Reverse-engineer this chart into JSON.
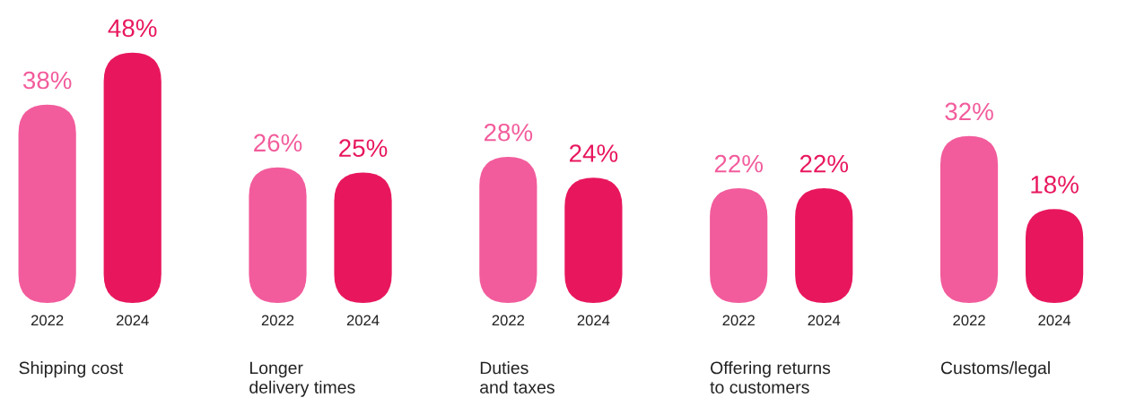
{
  "chart_data": {
    "type": "bar",
    "categories": [
      "Shipping cost",
      "Longer\ndelivery times",
      "Duties\nand taxes",
      "Offering returns\nto customers",
      "Customs/legal"
    ],
    "series": [
      {
        "name": "2022",
        "color": "#f25c9c",
        "values": [
          38,
          26,
          28,
          22,
          32
        ],
        "value_labels": [
          "38%",
          "26%",
          "28%",
          "22%",
          "32%"
        ]
      },
      {
        "name": "2024",
        "color": "#e8175d",
        "values": [
          48,
          25,
          24,
          22,
          18
        ],
        "value_labels": [
          "48%",
          "25%",
          "24%",
          "22%",
          "18%"
        ]
      }
    ]
  }
}
